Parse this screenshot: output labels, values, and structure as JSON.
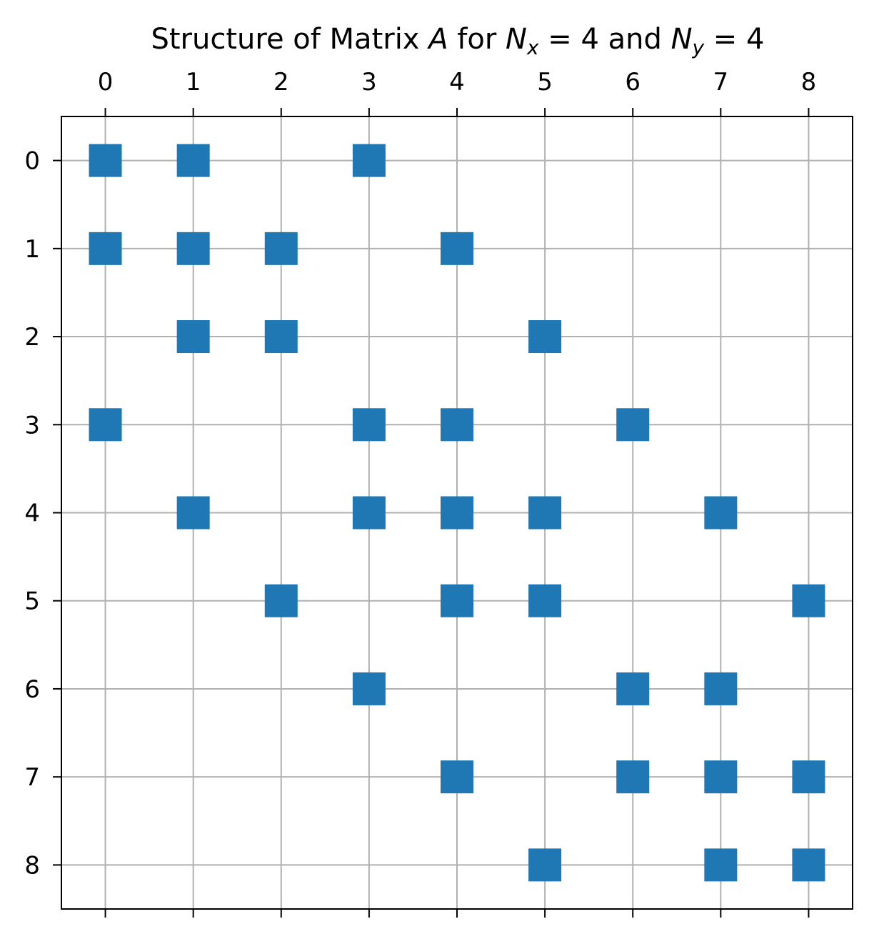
{
  "chart_data": {
    "type": "heatmap",
    "subtype": "sparsity-pattern (spy plot)",
    "title_parts": {
      "prefix": "Structure of Matrix ",
      "matrix_symbol": "A",
      "middle": " for ",
      "n_symbol": "N",
      "x_sub": "x",
      "eq1": " = 4 and ",
      "y_sub": "y",
      "eq2": " = 4"
    },
    "x_ticks": [
      "0",
      "1",
      "2",
      "3",
      "4",
      "5",
      "6",
      "7",
      "8"
    ],
    "y_ticks": [
      "0",
      "1",
      "2",
      "3",
      "4",
      "5",
      "6",
      "7",
      "8"
    ],
    "xlim": [
      -0.5,
      8.5
    ],
    "ylim": [
      8.5,
      -0.5
    ],
    "x_tick_position": "top",
    "grid": true,
    "nonzero_color": "#1f77b4",
    "grid_color": "#b0b0b0",
    "nonzeros": [
      [
        0,
        0
      ],
      [
        0,
        1
      ],
      [
        0,
        3
      ],
      [
        1,
        0
      ],
      [
        1,
        1
      ],
      [
        1,
        2
      ],
      [
        1,
        4
      ],
      [
        2,
        1
      ],
      [
        2,
        2
      ],
      [
        2,
        5
      ],
      [
        3,
        0
      ],
      [
        3,
        3
      ],
      [
        3,
        4
      ],
      [
        3,
        6
      ],
      [
        4,
        1
      ],
      [
        4,
        3
      ],
      [
        4,
        4
      ],
      [
        4,
        5
      ],
      [
        4,
        7
      ],
      [
        5,
        2
      ],
      [
        5,
        4
      ],
      [
        5,
        5
      ],
      [
        5,
        8
      ],
      [
        6,
        3
      ],
      [
        6,
        6
      ],
      [
        6,
        7
      ],
      [
        7,
        4
      ],
      [
        7,
        6
      ],
      [
        7,
        7
      ],
      [
        7,
        8
      ],
      [
        8,
        5
      ],
      [
        8,
        7
      ],
      [
        8,
        8
      ]
    ]
  }
}
